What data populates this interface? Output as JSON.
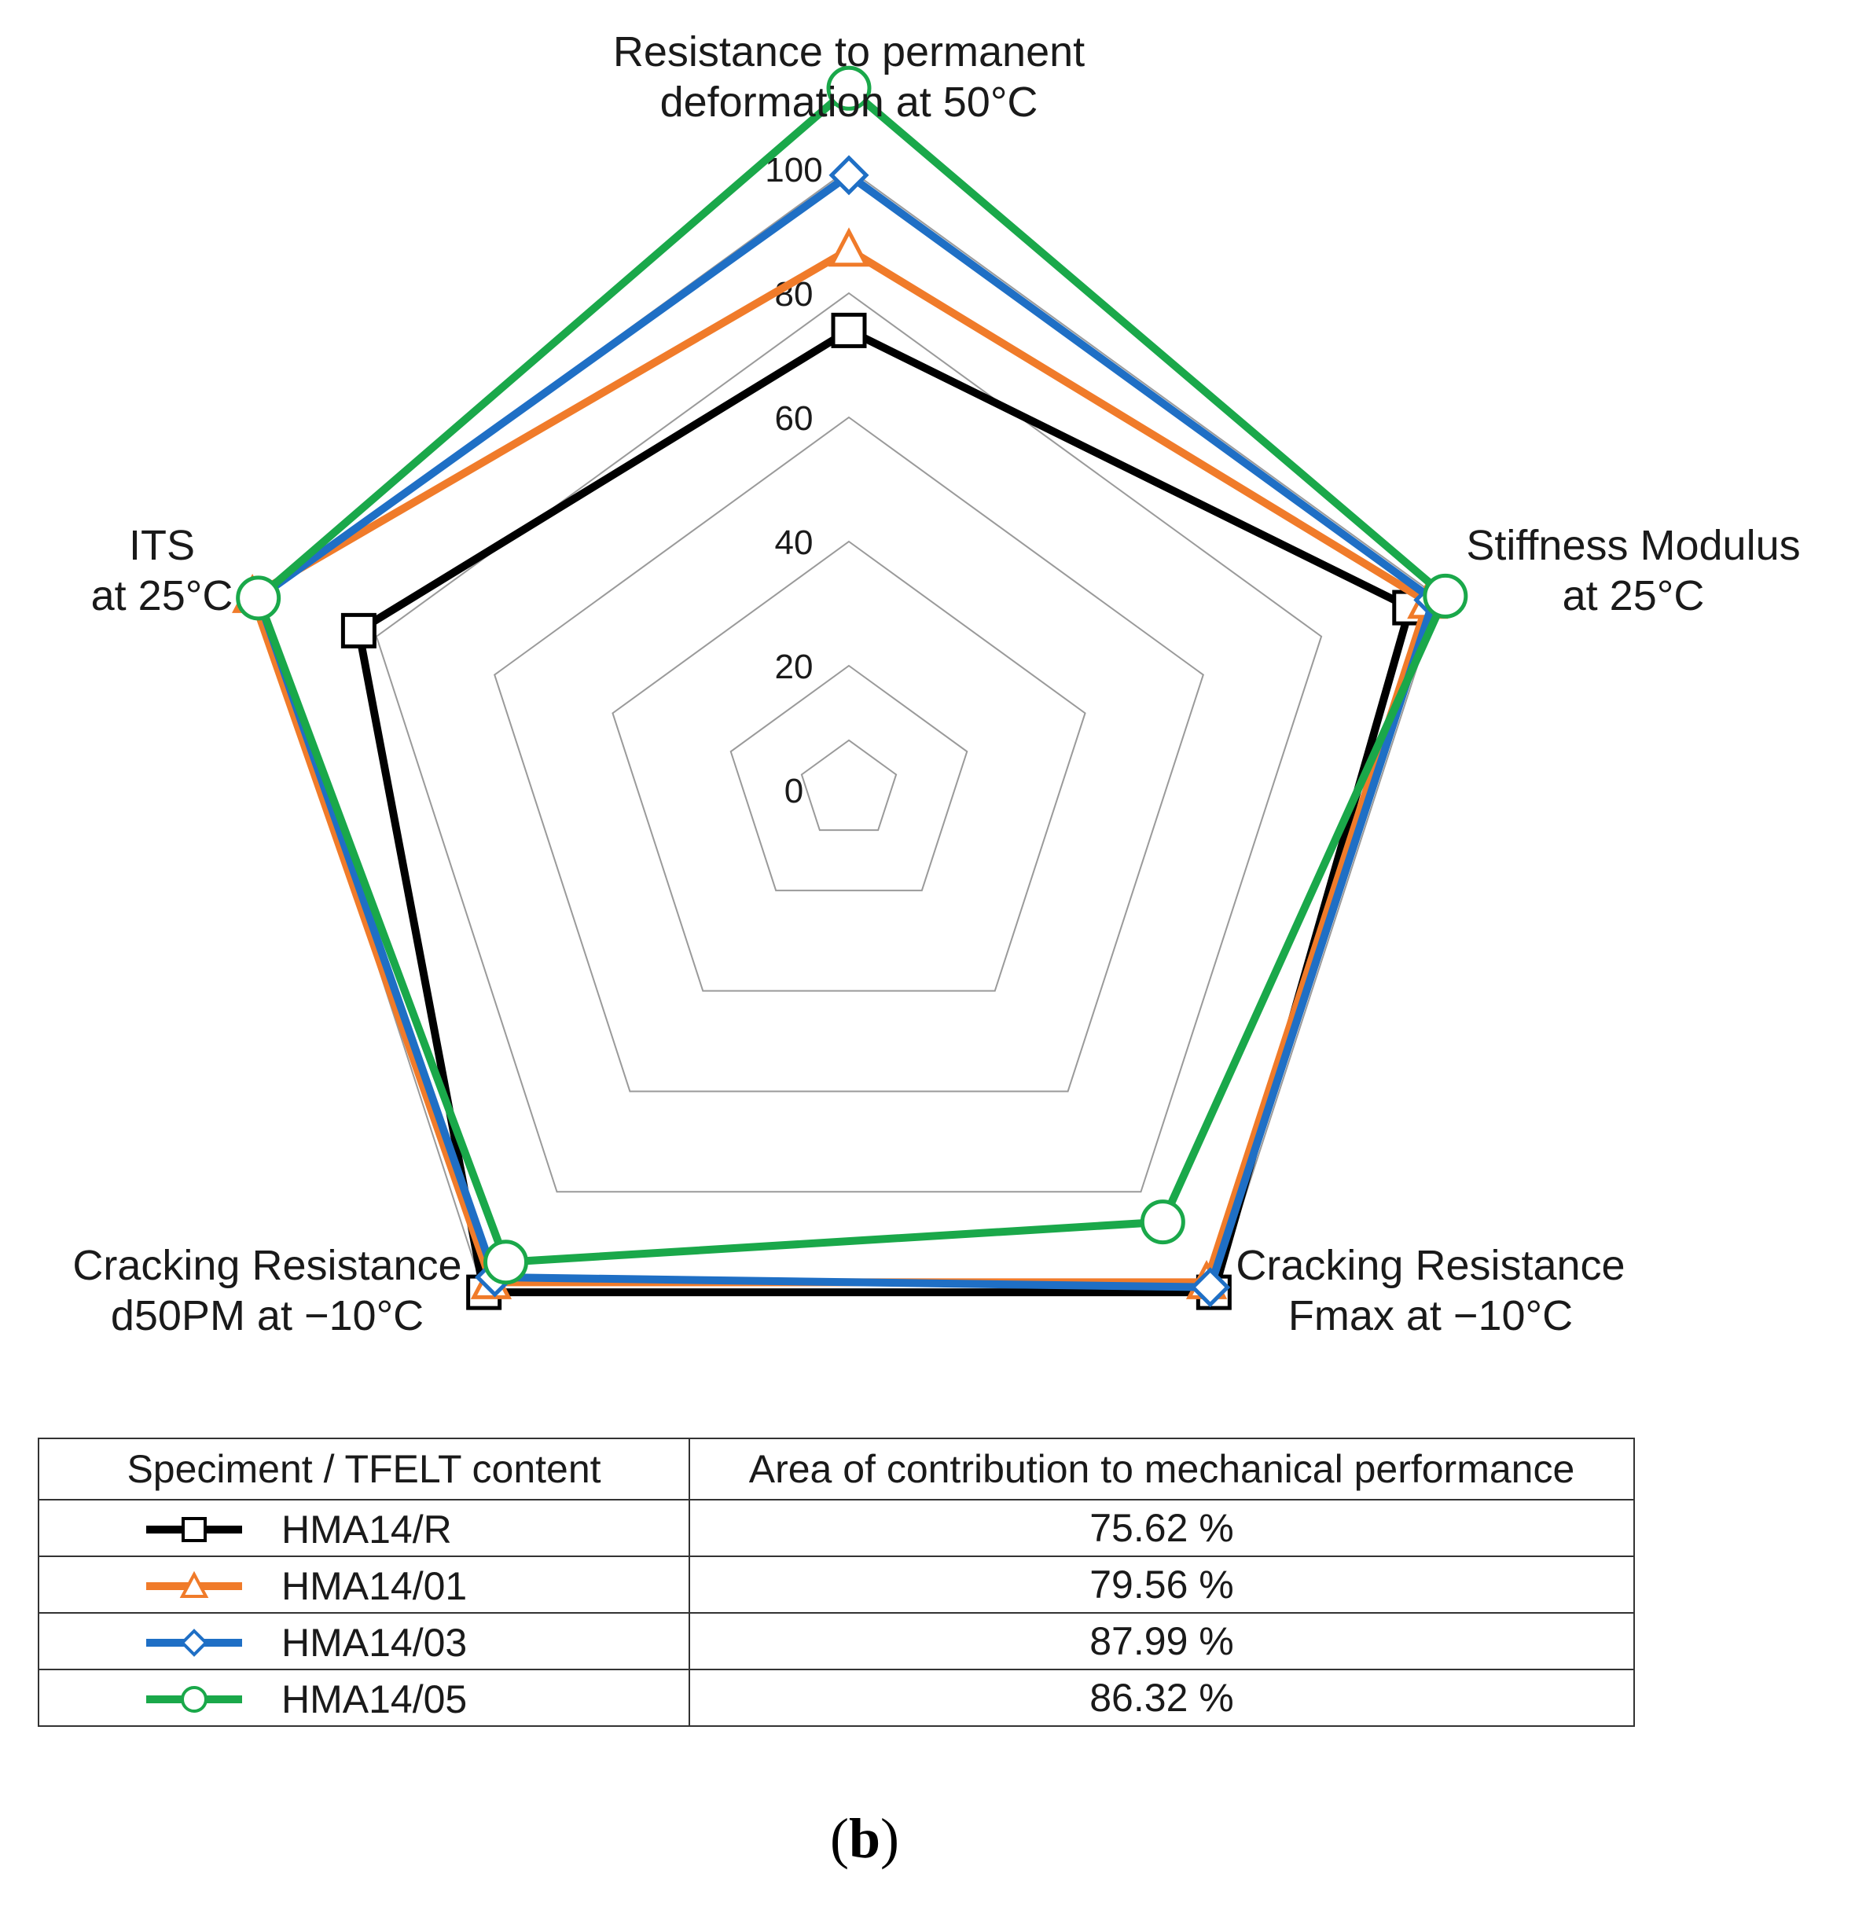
{
  "chart_data": {
    "type": "radar",
    "axes": [
      [
        "Resistance to permanent",
        "deformation at 50°C"
      ],
      [
        "Stiffness Modulus",
        "at 25°C"
      ],
      [
        "Cracking Resistance",
        "Fmax at −10°C"
      ],
      [
        "Cracking Resistance",
        "d50PM at −10°C"
      ],
      [
        "ITS",
        "at 25°C"
      ]
    ],
    "rlim": [
      0,
      100
    ],
    "ticks": [
      0,
      20,
      40,
      60,
      80,
      100
    ],
    "tick_labels": [
      "0",
      "20",
      "40",
      "60",
      "80",
      "100"
    ],
    "series": [
      {
        "name": "HMA14/R",
        "color": "#000000",
        "marker": "square",
        "values": [
          74,
          95,
          100,
          100,
          83
        ]
      },
      {
        "name": "HMA14/01",
        "color": "#f07b2a",
        "marker": "triangle",
        "values": [
          87,
          98,
          98,
          98,
          101
        ]
      },
      {
        "name": "HMA14/03",
        "color": "#1f6fc5",
        "marker": "diamond",
        "values": [
          99,
          99,
          99,
          97,
          100
        ]
      },
      {
        "name": "HMA14/05",
        "color": "#1aa84a",
        "marker": "circle",
        "values": [
          113,
          101,
          86,
          94,
          100
        ]
      }
    ]
  },
  "legend_table": {
    "header_specimen": "Speciment / TFELT content",
    "header_area": "Area of contribution to mechanical performance",
    "rows": [
      {
        "name": "HMA14/R",
        "area": "75.62 %"
      },
      {
        "name": "HMA14/01",
        "area": "79.56 %"
      },
      {
        "name": "HMA14/03",
        "area": "87.99 %"
      },
      {
        "name": "HMA14/05",
        "area": "86.32 %"
      }
    ]
  },
  "caption": {
    "open": "(",
    "letter": "b",
    "close": ")"
  }
}
